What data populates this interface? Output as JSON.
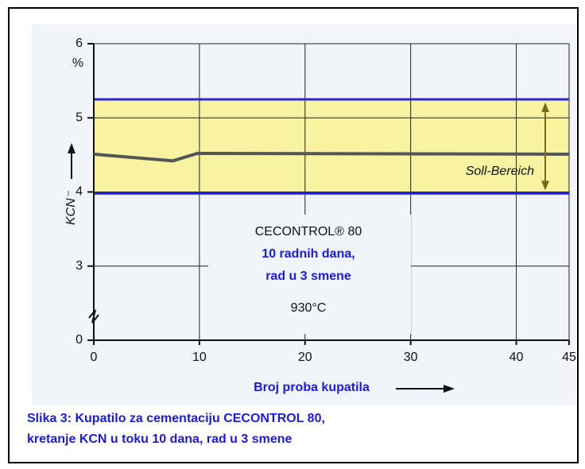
{
  "chart_data": {
    "type": "line",
    "x": [
      0,
      7.5,
      9.8,
      45
    ],
    "values": [
      4.51,
      4.42,
      4.52,
      4.51
    ],
    "color": "#555555",
    "xlim": [
      0,
      45
    ],
    "xticks": [
      0,
      10,
      20,
      30,
      40,
      45
    ],
    "ylim": [
      0,
      6
    ],
    "yticks": [
      0,
      3,
      4,
      5,
      6
    ],
    "axis_break": true,
    "grid": true,
    "ylabel": "KCN⁻",
    "yunit": "%",
    "xlabel": "Broj proba kupatila",
    "target_band": {
      "range": [
        3.98,
        5.25
      ],
      "color": "#f7f3a0",
      "line_color": "#2a2acc",
      "label": "Soll-Bereich"
    },
    "annotations": [
      "CECONTROL® 80",
      "10 radnih dana,",
      "rad u 3 smene",
      "930°C"
    ],
    "caption": [
      "Slika 3: Kupatilo za cementaciju CECONTROL 80,",
      "kretanje KCN u toku 10 dana, rad u 3 smene"
    ]
  }
}
